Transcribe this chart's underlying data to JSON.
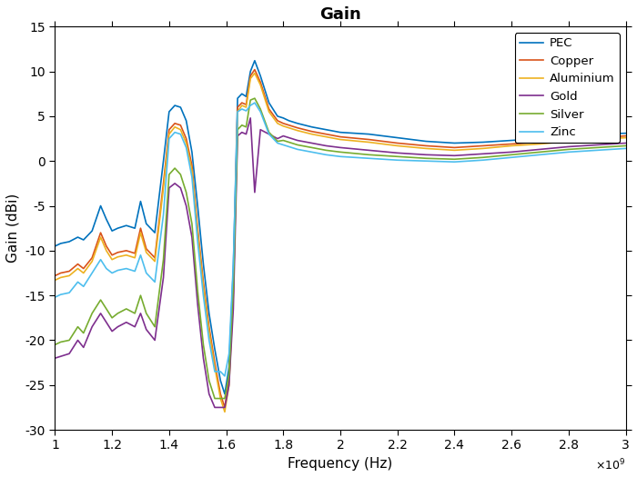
{
  "title": "Gain",
  "xlabel": "Frequency (Hz)",
  "ylabel": "Gain (dBi)",
  "xlim": [
    1000000000.0,
    3000000000.0
  ],
  "ylim": [
    -30,
    15
  ],
  "xticks": [
    1000000000.0,
    1200000000.0,
    1400000000.0,
    1600000000.0,
    1800000000.0,
    2000000000.0,
    2200000000.0,
    2400000000.0,
    2600000000.0,
    2800000000.0,
    3000000000.0
  ],
  "yticks": [
    -30,
    -25,
    -20,
    -15,
    -10,
    -5,
    0,
    5,
    10,
    15
  ],
  "title_fontsize": 13,
  "title_fontweight": "bold",
  "legend_labels": [
    "PEC",
    "Copper",
    "Aluminium",
    "Gold",
    "Silver",
    "Zinc"
  ],
  "line_colors": [
    "#0072BD",
    "#D95319",
    "#EDB120",
    "#7E2F8E",
    "#77AC30",
    "#4DBEEE"
  ],
  "line_width": 1.2,
  "curves": {
    "PEC": {
      "x": [
        1.0,
        1.02,
        1.05,
        1.08,
        1.1,
        1.13,
        1.16,
        1.18,
        1.2,
        1.22,
        1.25,
        1.28,
        1.3,
        1.32,
        1.35,
        1.38,
        1.4,
        1.42,
        1.44,
        1.46,
        1.48,
        1.5,
        1.52,
        1.54,
        1.56,
        1.58,
        1.595,
        1.61,
        1.625,
        1.64,
        1.655,
        1.67,
        1.685,
        1.7,
        1.72,
        1.75,
        1.78,
        1.8,
        1.82,
        1.85,
        1.9,
        1.95,
        2.0,
        2.1,
        2.2,
        2.3,
        2.4,
        2.5,
        2.6,
        2.7,
        2.8,
        2.9,
        3.0
      ],
      "y": [
        -9.5,
        -9.2,
        -9.0,
        -8.5,
        -8.8,
        -7.8,
        -5.0,
        -6.5,
        -7.8,
        -7.5,
        -7.2,
        -7.5,
        -4.5,
        -7.0,
        -8.0,
        0.0,
        5.5,
        6.2,
        6.0,
        4.5,
        1.0,
        -5.0,
        -11.5,
        -17.0,
        -21.0,
        -24.5,
        -26.0,
        -23.0,
        -12.0,
        7.0,
        7.5,
        7.2,
        10.0,
        11.2,
        9.5,
        6.5,
        5.0,
        4.8,
        4.5,
        4.2,
        3.8,
        3.5,
        3.2,
        3.0,
        2.6,
        2.2,
        2.0,
        2.1,
        2.3,
        2.5,
        2.8,
        3.0,
        3.1
      ]
    },
    "Copper": {
      "x": [
        1.0,
        1.02,
        1.05,
        1.08,
        1.1,
        1.13,
        1.16,
        1.18,
        1.2,
        1.22,
        1.25,
        1.28,
        1.3,
        1.32,
        1.35,
        1.38,
        1.4,
        1.42,
        1.44,
        1.46,
        1.48,
        1.5,
        1.52,
        1.54,
        1.56,
        1.58,
        1.595,
        1.61,
        1.625,
        1.64,
        1.655,
        1.67,
        1.685,
        1.7,
        1.72,
        1.75,
        1.78,
        1.8,
        1.82,
        1.85,
        1.9,
        1.95,
        2.0,
        2.1,
        2.2,
        2.3,
        2.4,
        2.5,
        2.6,
        2.7,
        2.8,
        2.9,
        3.0
      ],
      "y": [
        -12.8,
        -12.5,
        -12.3,
        -11.5,
        -12.0,
        -10.8,
        -8.0,
        -9.5,
        -10.5,
        -10.2,
        -10.0,
        -10.3,
        -7.5,
        -9.8,
        -10.8,
        -2.5,
        3.5,
        4.2,
        4.0,
        2.5,
        -0.5,
        -7.5,
        -13.5,
        -18.5,
        -22.5,
        -26.0,
        -27.5,
        -24.5,
        -14.5,
        6.0,
        6.5,
        6.3,
        9.5,
        10.2,
        8.8,
        5.8,
        4.5,
        4.2,
        4.0,
        3.7,
        3.3,
        3.0,
        2.7,
        2.4,
        2.0,
        1.7,
        1.5,
        1.7,
        1.9,
        2.1,
        2.4,
        2.6,
        2.8
      ]
    },
    "Aluminium": {
      "x": [
        1.0,
        1.02,
        1.05,
        1.08,
        1.1,
        1.13,
        1.16,
        1.18,
        1.2,
        1.22,
        1.25,
        1.28,
        1.3,
        1.32,
        1.35,
        1.38,
        1.4,
        1.42,
        1.44,
        1.46,
        1.48,
        1.5,
        1.52,
        1.54,
        1.56,
        1.58,
        1.595,
        1.61,
        1.625,
        1.64,
        1.655,
        1.67,
        1.685,
        1.7,
        1.72,
        1.75,
        1.78,
        1.8,
        1.82,
        1.85,
        1.9,
        1.95,
        2.0,
        2.1,
        2.2,
        2.3,
        2.4,
        2.5,
        2.6,
        2.7,
        2.8,
        2.9,
        3.0
      ],
      "y": [
        -13.3,
        -13.0,
        -12.8,
        -12.0,
        -12.5,
        -11.2,
        -8.5,
        -10.0,
        -11.0,
        -10.7,
        -10.5,
        -10.8,
        -8.0,
        -10.2,
        -11.2,
        -3.0,
        3.0,
        3.8,
        3.5,
        2.0,
        -1.0,
        -8.0,
        -14.0,
        -19.0,
        -23.0,
        -26.5,
        -28.0,
        -25.0,
        -15.0,
        5.5,
        6.2,
        6.0,
        9.2,
        9.8,
        8.5,
        5.5,
        4.2,
        3.9,
        3.7,
        3.4,
        3.0,
        2.7,
        2.4,
        2.1,
        1.7,
        1.4,
        1.2,
        1.4,
        1.7,
        1.9,
        2.2,
        2.4,
        2.6
      ]
    },
    "Gold": {
      "x": [
        1.0,
        1.02,
        1.05,
        1.08,
        1.1,
        1.13,
        1.16,
        1.18,
        1.2,
        1.22,
        1.25,
        1.28,
        1.3,
        1.32,
        1.35,
        1.38,
        1.4,
        1.42,
        1.44,
        1.46,
        1.48,
        1.5,
        1.52,
        1.54,
        1.56,
        1.58,
        1.595,
        1.61,
        1.625,
        1.64,
        1.655,
        1.67,
        1.685,
        1.7,
        1.72,
        1.75,
        1.78,
        1.8,
        1.82,
        1.85,
        1.9,
        1.95,
        2.0,
        2.1,
        2.2,
        2.3,
        2.4,
        2.5,
        2.6,
        2.7,
        2.8,
        2.9,
        3.0
      ],
      "y": [
        -22.0,
        -21.8,
        -21.5,
        -20.0,
        -20.8,
        -18.5,
        -17.0,
        -18.0,
        -19.0,
        -18.5,
        -18.0,
        -18.5,
        -17.0,
        -18.8,
        -20.0,
        -13.0,
        -3.0,
        -2.5,
        -3.0,
        -5.0,
        -8.5,
        -16.0,
        -22.0,
        -26.0,
        -27.5,
        -27.5,
        -27.5,
        -25.0,
        -16.5,
        2.8,
        3.2,
        3.0,
        4.8,
        -3.5,
        3.5,
        3.0,
        2.5,
        2.8,
        2.6,
        2.3,
        2.0,
        1.7,
        1.5,
        1.2,
        0.9,
        0.7,
        0.6,
        0.8,
        1.0,
        1.3,
        1.6,
        1.8,
        2.0
      ]
    },
    "Silver": {
      "x": [
        1.0,
        1.02,
        1.05,
        1.08,
        1.1,
        1.13,
        1.16,
        1.18,
        1.2,
        1.22,
        1.25,
        1.28,
        1.3,
        1.32,
        1.35,
        1.38,
        1.4,
        1.42,
        1.44,
        1.46,
        1.48,
        1.5,
        1.52,
        1.54,
        1.56,
        1.58,
        1.595,
        1.61,
        1.625,
        1.64,
        1.655,
        1.67,
        1.685,
        1.7,
        1.72,
        1.75,
        1.78,
        1.8,
        1.82,
        1.85,
        1.9,
        1.95,
        2.0,
        2.1,
        2.2,
        2.3,
        2.4,
        2.5,
        2.6,
        2.7,
        2.8,
        2.9,
        3.0
      ],
      "y": [
        -20.5,
        -20.2,
        -20.0,
        -18.5,
        -19.2,
        -17.0,
        -15.5,
        -16.5,
        -17.5,
        -17.0,
        -16.5,
        -17.0,
        -15.0,
        -17.0,
        -18.5,
        -11.0,
        -1.5,
        -0.8,
        -1.5,
        -3.5,
        -7.0,
        -14.5,
        -20.5,
        -24.5,
        -26.5,
        -26.5,
        -26.5,
        -23.8,
        -14.0,
        3.5,
        4.0,
        3.8,
        6.8,
        7.0,
        5.8,
        3.2,
        2.2,
        2.3,
        2.1,
        1.8,
        1.5,
        1.2,
        1.0,
        0.7,
        0.5,
        0.3,
        0.2,
        0.4,
        0.7,
        1.0,
        1.3,
        1.5,
        1.7
      ]
    },
    "Zinc": {
      "x": [
        1.0,
        1.02,
        1.05,
        1.08,
        1.1,
        1.13,
        1.16,
        1.18,
        1.2,
        1.22,
        1.25,
        1.28,
        1.3,
        1.32,
        1.35,
        1.38,
        1.4,
        1.42,
        1.44,
        1.46,
        1.48,
        1.5,
        1.52,
        1.54,
        1.56,
        1.58,
        1.595,
        1.61,
        1.625,
        1.64,
        1.655,
        1.67,
        1.685,
        1.7,
        1.72,
        1.75,
        1.78,
        1.8,
        1.82,
        1.85,
        1.9,
        1.95,
        2.0,
        2.1,
        2.2,
        2.3,
        2.4,
        2.5,
        2.6,
        2.7,
        2.8,
        2.9,
        3.0
      ],
      "y": [
        -15.2,
        -14.9,
        -14.7,
        -13.5,
        -14.0,
        -12.5,
        -11.0,
        -12.0,
        -12.5,
        -12.2,
        -12.0,
        -12.3,
        -10.5,
        -12.5,
        -13.5,
        -6.0,
        2.5,
        3.2,
        3.0,
        1.5,
        -1.8,
        -9.0,
        -15.0,
        -20.0,
        -23.5,
        -23.5,
        -24.0,
        -21.5,
        -11.5,
        5.5,
        5.8,
        5.6,
        6.2,
        6.5,
        5.5,
        3.0,
        2.0,
        1.8,
        1.6,
        1.3,
        1.0,
        0.7,
        0.5,
        0.3,
        0.1,
        0.0,
        -0.1,
        0.1,
        0.4,
        0.7,
        1.0,
        1.2,
        1.4
      ]
    }
  }
}
